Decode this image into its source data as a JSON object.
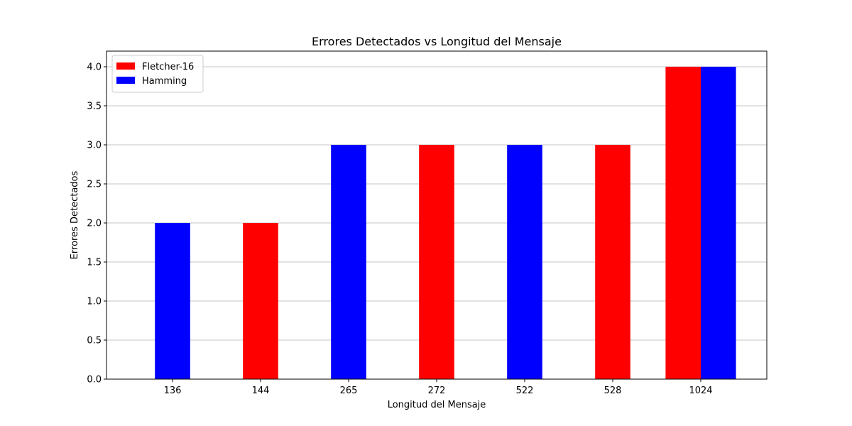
{
  "chart_data": {
    "type": "bar",
    "title": "Errores Detectados vs Longitud del Mensaje",
    "xlabel": "Longitud del Mensaje",
    "ylabel": "Errores Detectados",
    "categories": [
      "136",
      "144",
      "265",
      "272",
      "522",
      "528",
      "1024"
    ],
    "series": [
      {
        "name": "Fletcher-16",
        "color": "#ff0000",
        "values": [
          0,
          2,
          0,
          3,
          0,
          3,
          4
        ]
      },
      {
        "name": "Hamming",
        "color": "#0000ff",
        "values": [
          2,
          0,
          3,
          0,
          3,
          0,
          4
        ]
      }
    ],
    "y_ticks": [
      "0.0",
      "0.5",
      "1.0",
      "1.5",
      "2.0",
      "2.5",
      "3.0",
      "3.5",
      "4.0"
    ],
    "ylim": [
      0,
      4.2
    ],
    "grid": "y",
    "legend_position": "top-left"
  }
}
